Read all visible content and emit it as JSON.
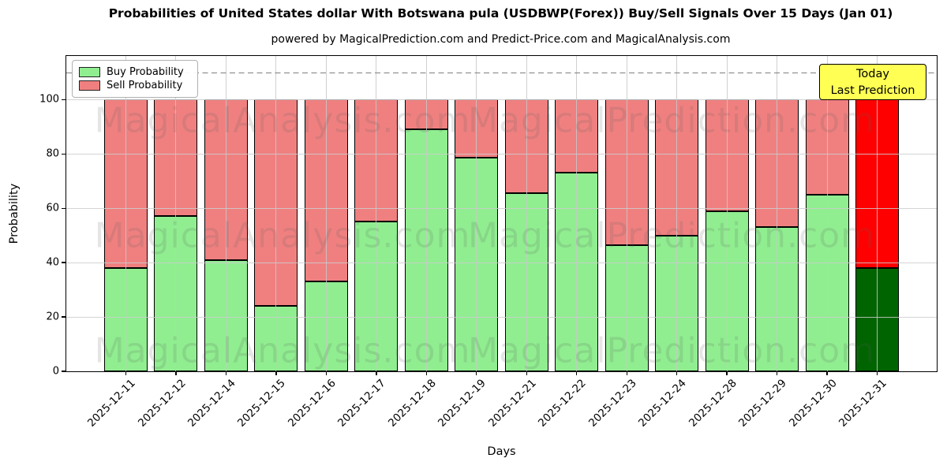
{
  "header": {
    "title": "Probabilities of United States dollar With Botswana pula (USDBWP(Forex)) Buy/Sell Signals Over 15 Days (Jan 01)",
    "subtitle": "powered by MagicalPrediction.com and Predict-Price.com and MagicalAnalysis.com"
  },
  "legend": {
    "items": [
      {
        "label": "Buy Probability",
        "color": "#90ee90"
      },
      {
        "label": "Sell Probability",
        "color": "#f08080"
      }
    ]
  },
  "annotation": {
    "line1": "Today",
    "line2": "Last Prediction",
    "bg_color": "#ffff54",
    "border_color": "#000000"
  },
  "watermarks": {
    "left_text": "MagicalAnalysis.com",
    "right_text": "MagicalPrediction.com"
  },
  "chart_data": {
    "type": "bar",
    "stacked": true,
    "title": "Probabilities of United States dollar With Botswana pula (USDBWP(Forex)) Buy/Sell Signals Over 15 Days (Jan 01)",
    "xlabel": "Days",
    "ylabel": "Probability",
    "categories": [
      "2025-12-11",
      "2025-12-12",
      "2025-12-14",
      "2025-12-15",
      "2025-12-16",
      "2025-12-17",
      "2025-12-18",
      "2025-12-19",
      "2025-12-21",
      "2025-12-22",
      "2025-12-23",
      "2025-12-24",
      "2025-12-28",
      "2025-12-29",
      "2025-12-30",
      "2025-12-31"
    ],
    "series": [
      {
        "name": "Buy Probability",
        "values": [
          38,
          57,
          41,
          24,
          33,
          55,
          89,
          78.5,
          65.5,
          73,
          46.5,
          50,
          59,
          53,
          65,
          38
        ]
      },
      {
        "name": "Sell Probability",
        "values": [
          62,
          43,
          59,
          76,
          67,
          45,
          11,
          21.5,
          34.5,
          27,
          53.5,
          50,
          41,
          47,
          35,
          62
        ]
      }
    ],
    "today_index": 15,
    "colors": {
      "buy": "#90ee90",
      "sell": "#f08080",
      "today_buy": "#006400",
      "today_sell": "#ff0000",
      "bar_edge": "#000000"
    },
    "dashed_line_y": 110,
    "ylim": [
      0,
      116
    ],
    "yticks": [
      0,
      20,
      40,
      60,
      80,
      100
    ],
    "grid": true,
    "legend_position": "upper left"
  }
}
